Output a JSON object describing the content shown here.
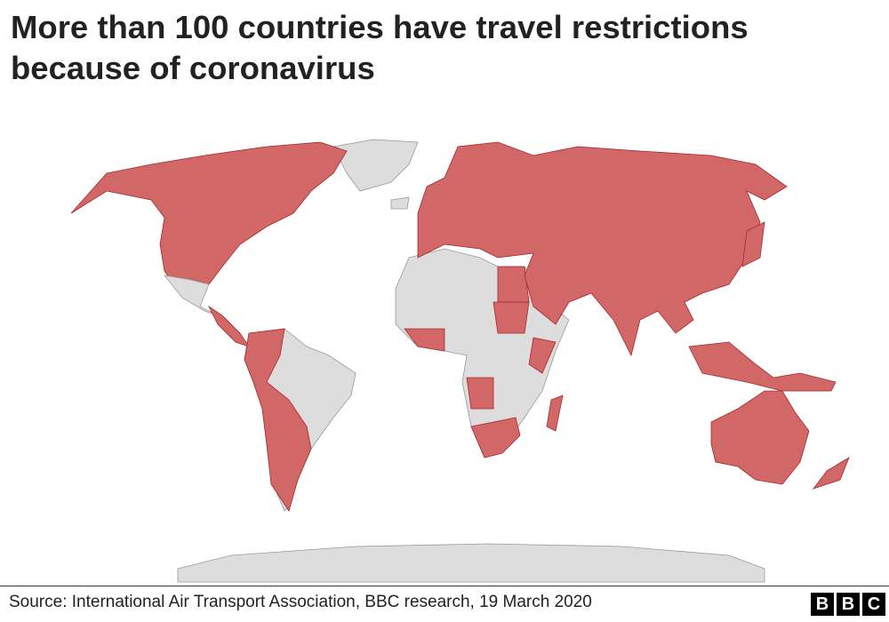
{
  "header": {
    "title": "More than 100 countries have travel restrictions because of coronavirus"
  },
  "footer": {
    "source": "Source:  International Air Transport Association, BBC research, 19 March 2020",
    "logo": [
      "B",
      "B",
      "C"
    ]
  }
}
